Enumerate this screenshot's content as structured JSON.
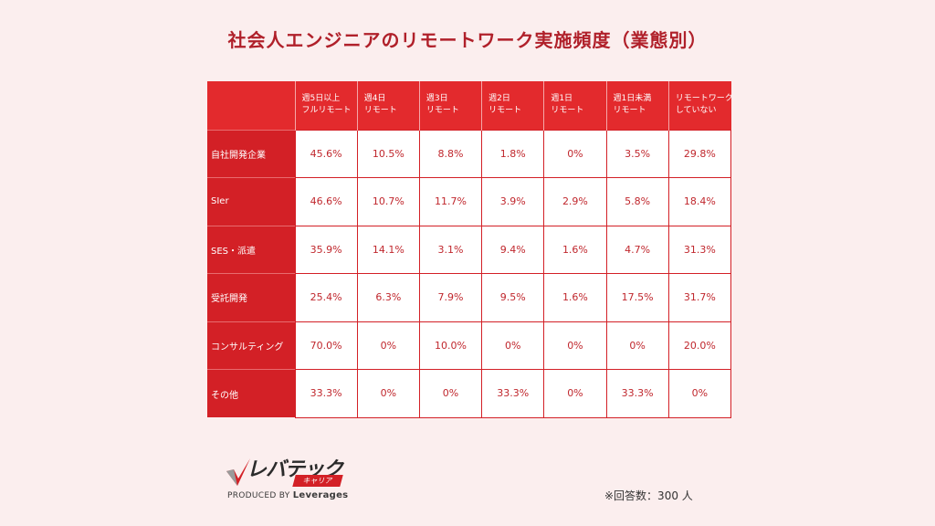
{
  "title": "社会人エンジニアのリモートワーク実施頻度（業態別）",
  "chart_data": {
    "type": "table",
    "columns": [
      [
        "週5日以上",
        "フルリモート"
      ],
      [
        "週4日",
        "リモート"
      ],
      [
        "週3日",
        "リモート"
      ],
      [
        "週2日",
        "リモート"
      ],
      [
        "週1日",
        "リモート"
      ],
      [
        "週1日未満",
        "リモート"
      ],
      [
        "リモートワーク",
        "していない"
      ]
    ],
    "rows": [
      {
        "label": "自社開発企業",
        "values": [
          "45.6%",
          "10.5%",
          "8.8%",
          "1.8%",
          "0%",
          "3.5%",
          "29.8%"
        ]
      },
      {
        "label": "SIer",
        "values": [
          "46.6%",
          "10.7%",
          "11.7%",
          "3.9%",
          "2.9%",
          "5.8%",
          "18.4%"
        ]
      },
      {
        "label": "SES・派遣",
        "values": [
          "35.9%",
          "14.1%",
          "3.1%",
          "9.4%",
          "1.6%",
          "4.7%",
          "31.3%"
        ]
      },
      {
        "label": "受託開発",
        "values": [
          "25.4%",
          "6.3%",
          "7.9%",
          "9.5%",
          "1.6%",
          "17.5%",
          "31.7%"
        ]
      },
      {
        "label": "コンサルティング",
        "values": [
          "70.0%",
          "0%",
          "10.0%",
          "0%",
          "0%",
          "0%",
          "20.0%"
        ]
      },
      {
        "label": "その他",
        "values": [
          "33.3%",
          "0%",
          "0%",
          "33.3%",
          "0%",
          "33.3%",
          "0%"
        ]
      }
    ]
  },
  "logo": {
    "main": "レバテック",
    "tag": "キャリア",
    "produced_by": "PRODUCED BY",
    "brand": "Leverages"
  },
  "note": "※回答数：300 人",
  "colors": {
    "accent": "#e32a2d",
    "title": "#b0202a"
  }
}
